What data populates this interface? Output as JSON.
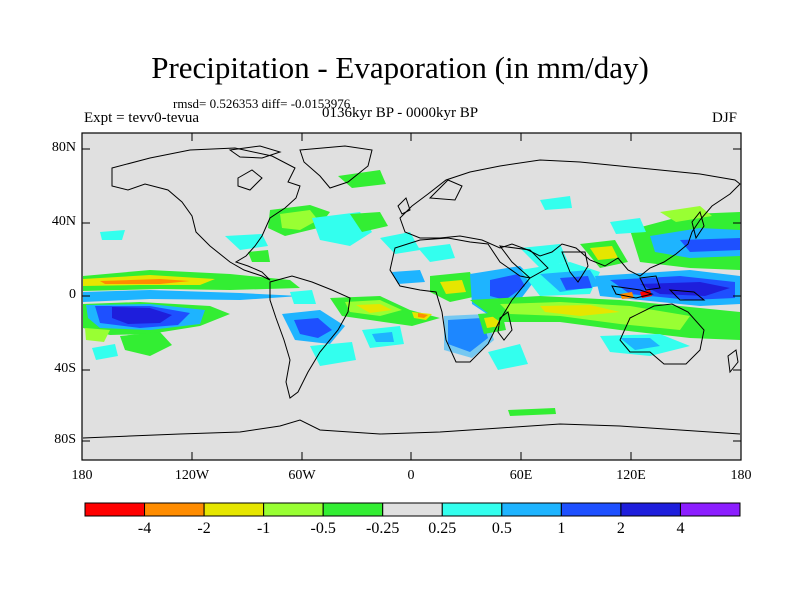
{
  "title": "Precipitation - Evaporation (in mm/day)",
  "stats": "rmsd= 0.526353 diff= -0.0153976",
  "experiment": "Expt = tevv0-tevua",
  "period": "0136kyr BP - 0000kyr BP",
  "season": "DJF",
  "lat_labels": [
    "80N",
    "40N",
    "0",
    "40S",
    "80S"
  ],
  "lon_labels": [
    "180",
    "120W",
    "60W",
    "0",
    "60E",
    "120E",
    "180"
  ],
  "colorbar": {
    "labels": [
      "-4",
      "-2",
      "-1",
      "-0.5",
      "-0.25",
      "0.25",
      "0.5",
      "1",
      "2",
      "4"
    ],
    "colors": [
      "#ff0000",
      "#ff8c00",
      "#e6e600",
      "#99ff33",
      "#33ee33",
      "#e0e0e0",
      "#33ffee",
      "#1eb4ff",
      "#1e50ff",
      "#1e1edc",
      "#8c1eff"
    ]
  },
  "colors": {
    "background": "#e0e0e0",
    "cyan": "#33ffee",
    "light_blue": "#1eb4ff",
    "blue": "#1e50ff",
    "dark_blue": "#1e1edc",
    "green": "#33ee33",
    "light_green": "#99ff33",
    "yellow": "#e6e600",
    "orange": "#ff8c00",
    "red": "#ff0000"
  }
}
